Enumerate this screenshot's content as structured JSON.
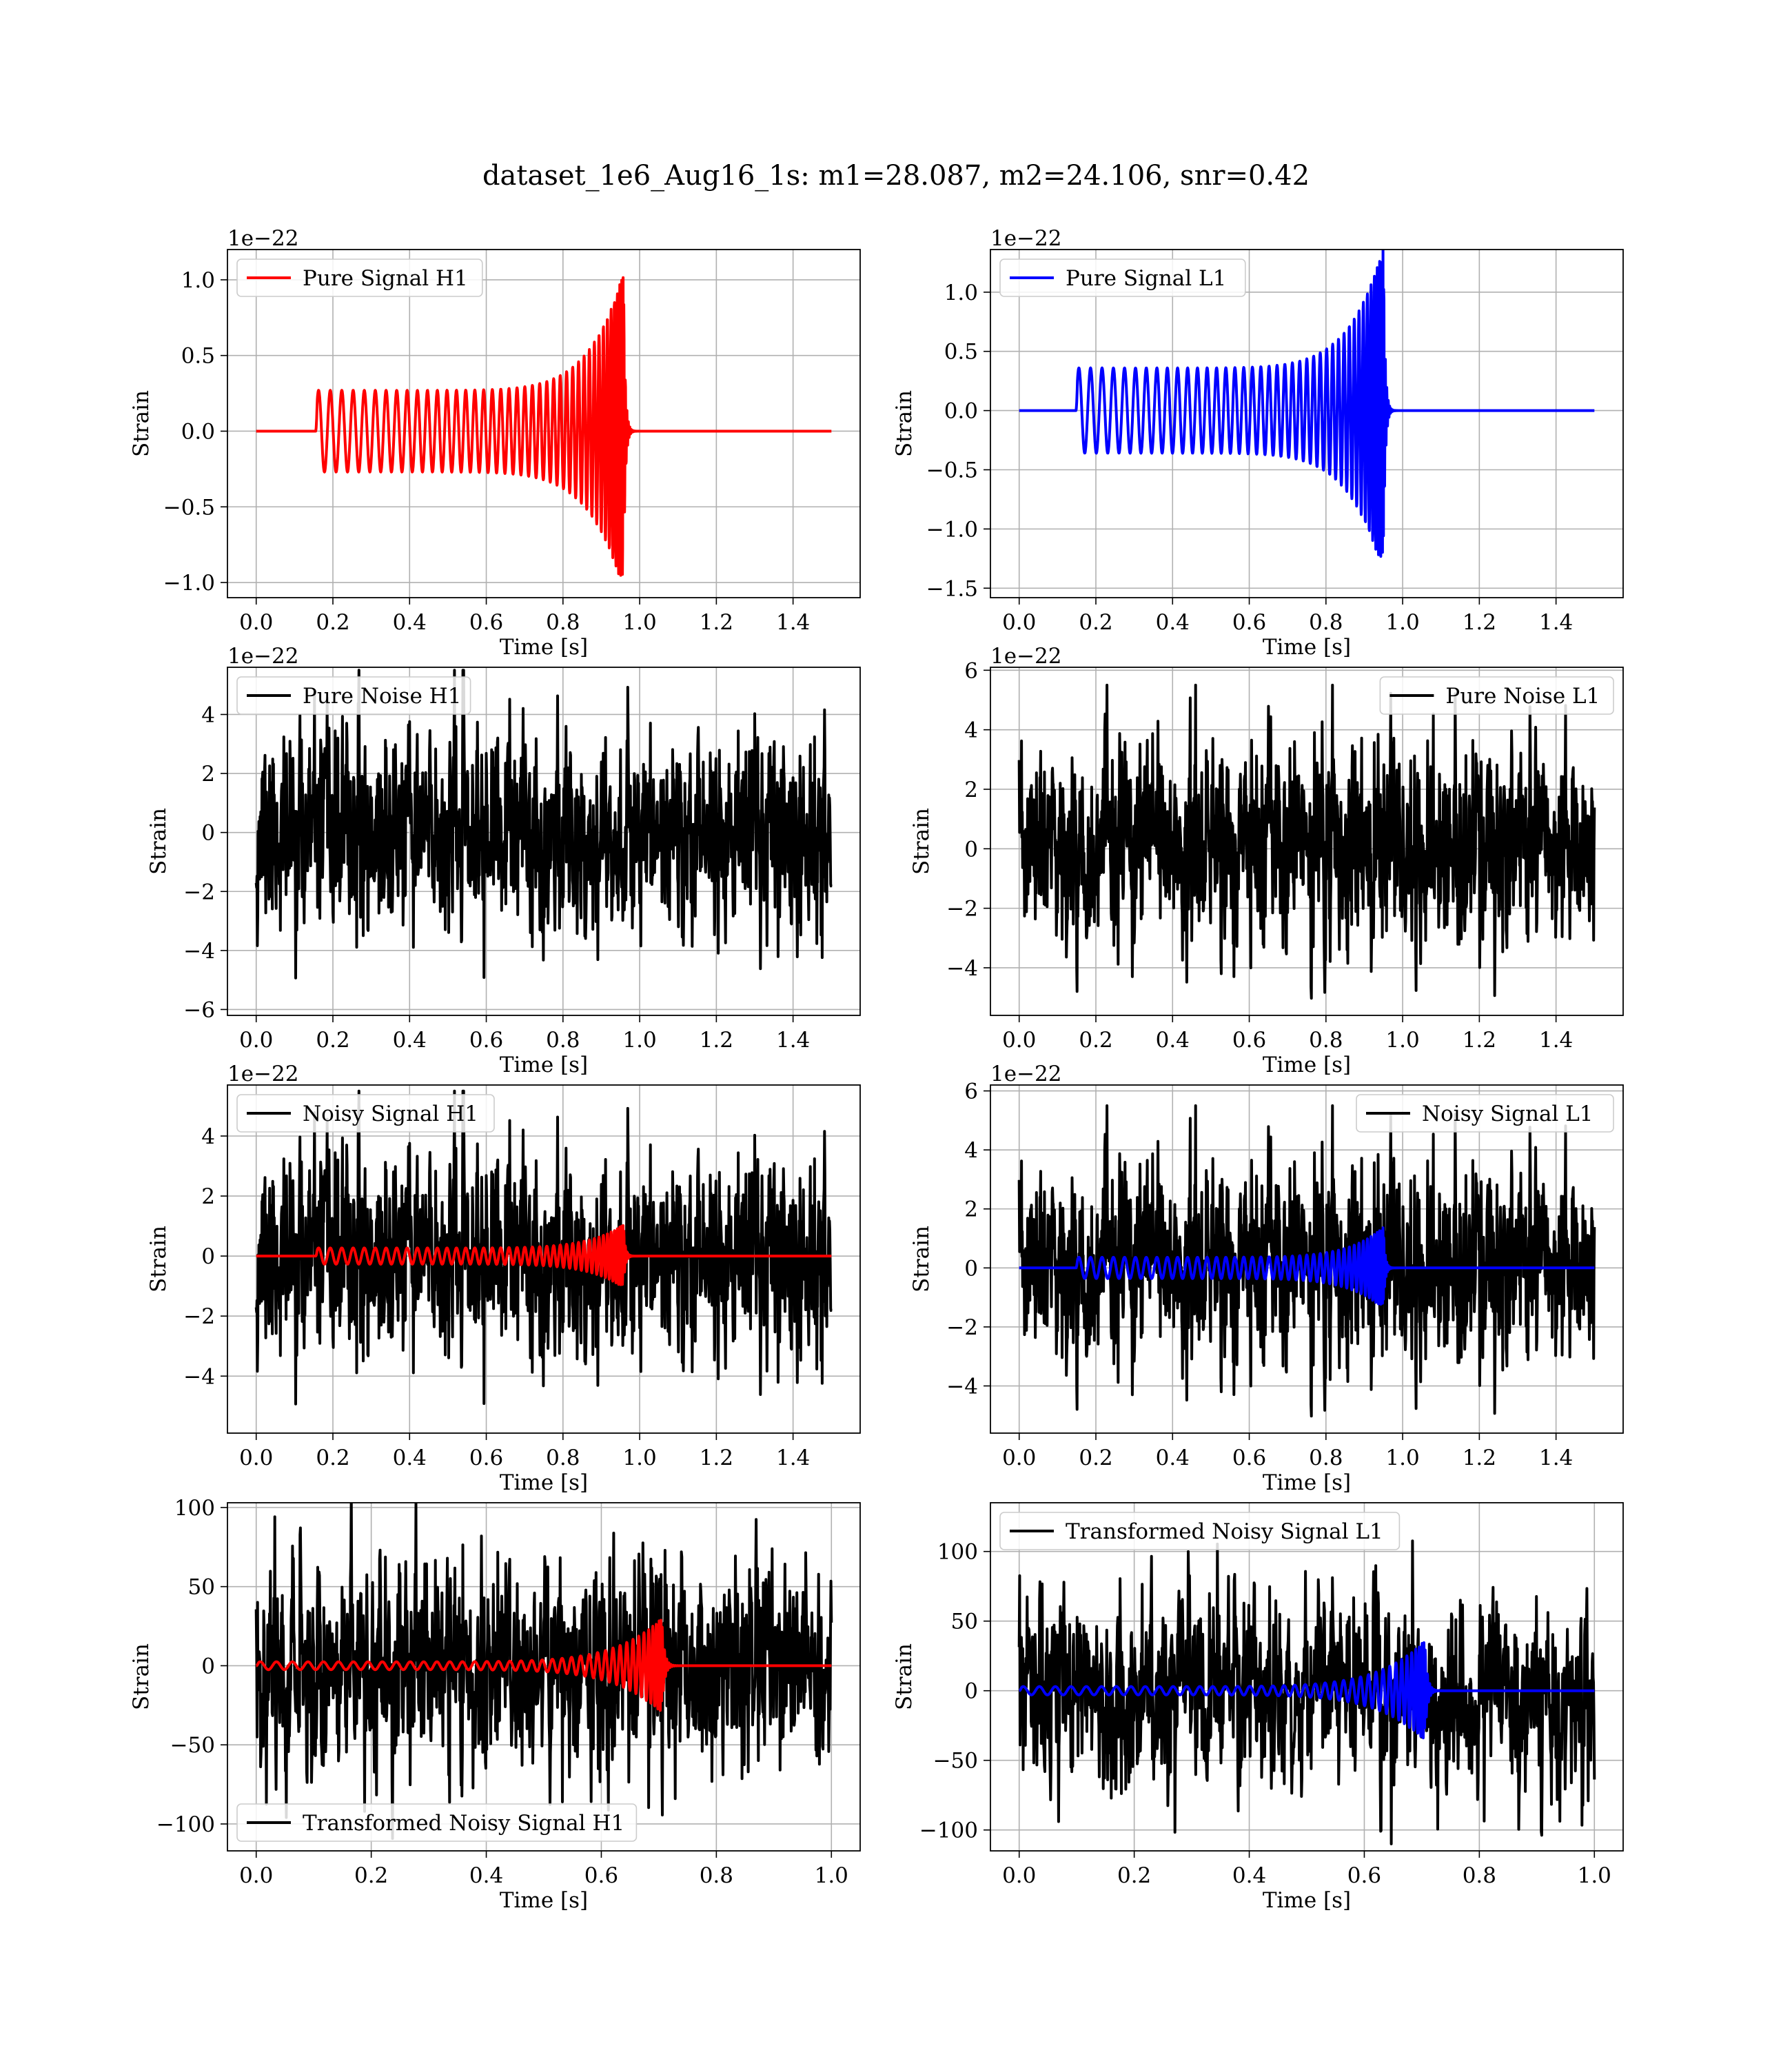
{
  "figure": {
    "title": "dataset_1e6_Aug16_1s: m1=28.087, m2=24.106, snr=0.42",
    "colors": {
      "h1": "#ff0000",
      "l1": "#0000ff",
      "noise": "#000000",
      "grid": "#b0b0b0"
    }
  },
  "chart_data": [
    {
      "type": "line",
      "name": "pure-signal-h1",
      "xlabel": "Time [s]",
      "ylabel": "Strain",
      "offset_text": "1e−22",
      "xlim": [
        -0.075,
        1.575
      ],
      "ylim": [
        -1.1,
        1.2
      ],
      "xticks": [
        0,
        0.2,
        0.4,
        0.6,
        0.8,
        1.0,
        1.2,
        1.4
      ],
      "yticks": [
        -1.0,
        -0.5,
        0.0,
        0.5,
        1.0
      ],
      "xtick_labels": [
        "0.0",
        "0.2",
        "0.4",
        "0.6",
        "0.8",
        "1.0",
        "1.2",
        "1.4"
      ],
      "ytick_labels": [
        "−1.0",
        "−0.5",
        "0.0",
        "0.5",
        "1.0"
      ],
      "legend": {
        "label": "Pure Signal H1",
        "position": "upper-left",
        "color": "#ff0000"
      },
      "series": [
        {
          "kind": "chirp",
          "color": "#ff0000",
          "width": 4,
          "x_start": 0,
          "x_end": 1.5,
          "t_on": 0.155,
          "t_merge": 0.958,
          "amp_start": 0.27,
          "amp_peak": 1.05,
          "cycles": 42
        }
      ]
    },
    {
      "type": "line",
      "name": "pure-signal-l1",
      "xlabel": "Time [s]",
      "ylabel": "Strain",
      "offset_text": "1e−22",
      "xlim": [
        -0.075,
        1.575
      ],
      "ylim": [
        -1.58,
        1.36
      ],
      "xticks": [
        0,
        0.2,
        0.4,
        0.6,
        0.8,
        1.0,
        1.2,
        1.4
      ],
      "yticks": [
        -1.5,
        -1.0,
        -0.5,
        0.0,
        0.5,
        1.0
      ],
      "xtick_labels": [
        "0.0",
        "0.2",
        "0.4",
        "0.6",
        "0.8",
        "1.0",
        "1.2",
        "1.4"
      ],
      "ytick_labels": [
        "−1.5",
        "−1.0",
        "−0.5",
        "0.0",
        "0.5",
        "1.0"
      ],
      "legend": {
        "label": "Pure Signal L1",
        "position": "upper-left",
        "color": "#0000ff"
      },
      "series": [
        {
          "kind": "chirp",
          "color": "#0000ff",
          "width": 4,
          "x_start": 0,
          "x_end": 1.5,
          "t_on": 0.148,
          "t_merge": 0.95,
          "amp_start": 0.36,
          "amp_peak": 1.38,
          "cycles": 42
        }
      ]
    },
    {
      "type": "line",
      "name": "pure-noise-h1",
      "xlabel": "Time [s]",
      "ylabel": "Strain",
      "offset_text": "1e−22",
      "xlim": [
        -0.075,
        1.575
      ],
      "ylim": [
        -6.2,
        5.6
      ],
      "xticks": [
        0,
        0.2,
        0.4,
        0.6,
        0.8,
        1.0,
        1.2,
        1.4
      ],
      "yticks": [
        -6,
        -4,
        -2,
        0,
        2,
        4
      ],
      "xtick_labels": [
        "0.0",
        "0.2",
        "0.4",
        "0.6",
        "0.8",
        "1.0",
        "1.2",
        "1.4"
      ],
      "ytick_labels": [
        "−6",
        "−4",
        "−2",
        "0",
        "2",
        "4"
      ],
      "legend": {
        "label": "Pure Noise H1",
        "position": "upper-left",
        "color": "#000000"
      },
      "series": [
        {
          "kind": "noise",
          "color": "#000000",
          "width": 4,
          "x_start": 0,
          "x_end": 1.5,
          "sigma": 1.6,
          "clip": 5.5,
          "seed": 11,
          "points": 1500
        }
      ]
    },
    {
      "type": "line",
      "name": "pure-noise-l1",
      "xlabel": "Time [s]",
      "ylabel": "Strain",
      "offset_text": "1e−22",
      "xlim": [
        -0.075,
        1.575
      ],
      "ylim": [
        -5.6,
        6.1
      ],
      "xticks": [
        0,
        0.2,
        0.4,
        0.6,
        0.8,
        1.0,
        1.2,
        1.4
      ],
      "yticks": [
        -4,
        -2,
        0,
        2,
        4,
        6
      ],
      "xtick_labels": [
        "0.0",
        "0.2",
        "0.4",
        "0.6",
        "0.8",
        "1.0",
        "1.2",
        "1.4"
      ],
      "ytick_labels": [
        "−4",
        "−2",
        "0",
        "2",
        "4",
        "6"
      ],
      "legend": {
        "label": "Pure Noise L1",
        "position": "upper-right",
        "color": "#000000"
      },
      "series": [
        {
          "kind": "noise",
          "color": "#000000",
          "width": 4,
          "x_start": 0,
          "x_end": 1.5,
          "sigma": 1.6,
          "clip": 5.5,
          "seed": 23,
          "points": 1500
        }
      ]
    },
    {
      "type": "line",
      "name": "noisy-signal-h1",
      "xlabel": "Time [s]",
      "ylabel": "Strain",
      "offset_text": "1e−22",
      "xlim": [
        -0.075,
        1.575
      ],
      "ylim": [
        -5.9,
        5.7
      ],
      "xticks": [
        0,
        0.2,
        0.4,
        0.6,
        0.8,
        1.0,
        1.2,
        1.4
      ],
      "yticks": [
        -4,
        -2,
        0,
        2,
        4
      ],
      "xtick_labels": [
        "0.0",
        "0.2",
        "0.4",
        "0.6",
        "0.8",
        "1.0",
        "1.2",
        "1.4"
      ],
      "ytick_labels": [
        "−4",
        "−2",
        "0",
        "2",
        "4"
      ],
      "legend": {
        "label": "Noisy Signal H1",
        "position": "upper-left",
        "color": "#000000"
      },
      "series": [
        {
          "kind": "noise",
          "color": "#000000",
          "width": 4,
          "x_start": 0,
          "x_end": 1.5,
          "sigma": 1.6,
          "clip": 5.5,
          "seed": 11,
          "points": 1500
        },
        {
          "kind": "chirp",
          "color": "#ff0000",
          "width": 4,
          "x_start": 0,
          "x_end": 1.5,
          "t_on": 0.155,
          "t_merge": 0.958,
          "amp_start": 0.27,
          "amp_peak": 1.05,
          "cycles": 42
        }
      ]
    },
    {
      "type": "line",
      "name": "noisy-signal-l1",
      "xlabel": "Time [s]",
      "ylabel": "Strain",
      "offset_text": "1e−22",
      "xlim": [
        -0.075,
        1.575
      ],
      "ylim": [
        -5.6,
        6.2
      ],
      "xticks": [
        0,
        0.2,
        0.4,
        0.6,
        0.8,
        1.0,
        1.2,
        1.4
      ],
      "yticks": [
        -4,
        -2,
        0,
        2,
        4,
        6
      ],
      "xtick_labels": [
        "0.0",
        "0.2",
        "0.4",
        "0.6",
        "0.8",
        "1.0",
        "1.2",
        "1.4"
      ],
      "ytick_labels": [
        "−4",
        "−2",
        "0",
        "2",
        "4",
        "6"
      ],
      "legend": {
        "label": "Noisy Signal L1",
        "position": "upper-right",
        "color": "#000000"
      },
      "series": [
        {
          "kind": "noise",
          "color": "#000000",
          "width": 4,
          "x_start": 0,
          "x_end": 1.5,
          "sigma": 1.6,
          "clip": 5.5,
          "seed": 23,
          "points": 1500
        },
        {
          "kind": "chirp",
          "color": "#0000ff",
          "width": 4,
          "x_start": 0,
          "x_end": 1.5,
          "t_on": 0.148,
          "t_merge": 0.95,
          "amp_start": 0.36,
          "amp_peak": 1.38,
          "cycles": 42
        }
      ]
    },
    {
      "type": "line",
      "name": "transformed-noisy-signal-h1",
      "xlabel": "Time [s]",
      "ylabel": "Strain",
      "offset_text": "",
      "xlim": [
        -0.05,
        1.05
      ],
      "ylim": [
        -117,
        103
      ],
      "xticks": [
        0,
        0.2,
        0.4,
        0.6,
        0.8,
        1.0
      ],
      "yticks": [
        -100,
        -50,
        0,
        50,
        100
      ],
      "xtick_labels": [
        "0.0",
        "0.2",
        "0.4",
        "0.6",
        "0.8",
        "1.0"
      ],
      "ytick_labels": [
        "−100",
        "−50",
        "0",
        "50",
        "100"
      ],
      "legend": {
        "label": "Transformed Noisy Signal H1",
        "position": "lower-left",
        "color": "#000000"
      },
      "series": [
        {
          "kind": "noise",
          "color": "#000000",
          "width": 4,
          "x_start": 0,
          "x_end": 1.0,
          "sigma": 33,
          "clip": 112,
          "seed": 37,
          "points": 1300
        },
        {
          "kind": "chirp",
          "color": "#ff0000",
          "width": 4,
          "x_start": 0,
          "x_end": 1.0,
          "t_on": 0.0,
          "t_merge": 0.705,
          "amp_start": 2.5,
          "amp_peak": 30,
          "cycles": 40
        }
      ]
    },
    {
      "type": "line",
      "name": "transformed-noisy-signal-l1",
      "xlabel": "Time [s]",
      "ylabel": "Strain",
      "offset_text": "",
      "xlim": [
        -0.05,
        1.05
      ],
      "ylim": [
        -115,
        135
      ],
      "xticks": [
        0,
        0.2,
        0.4,
        0.6,
        0.8,
        1.0
      ],
      "yticks": [
        -100,
        -50,
        0,
        50,
        100
      ],
      "xtick_labels": [
        "0.0",
        "0.2",
        "0.4",
        "0.6",
        "0.8",
        "1.0"
      ],
      "ytick_labels": [
        "−100",
        "−50",
        "0",
        "50",
        "100"
      ],
      "legend": {
        "label": "Transformed Noisy Signal L1",
        "position": "upper-left",
        "color": "#000000"
      },
      "series": [
        {
          "kind": "noise",
          "color": "#000000",
          "width": 4,
          "x_start": 0,
          "x_end": 1.0,
          "sigma": 33,
          "clip": 110,
          "seed": 53,
          "points": 1300
        },
        {
          "kind": "chirp",
          "color": "#0000ff",
          "width": 4,
          "x_start": 0,
          "x_end": 1.0,
          "t_on": 0.0,
          "t_merge": 0.705,
          "amp_start": 3,
          "amp_peak": 36,
          "cycles": 40
        }
      ]
    }
  ]
}
